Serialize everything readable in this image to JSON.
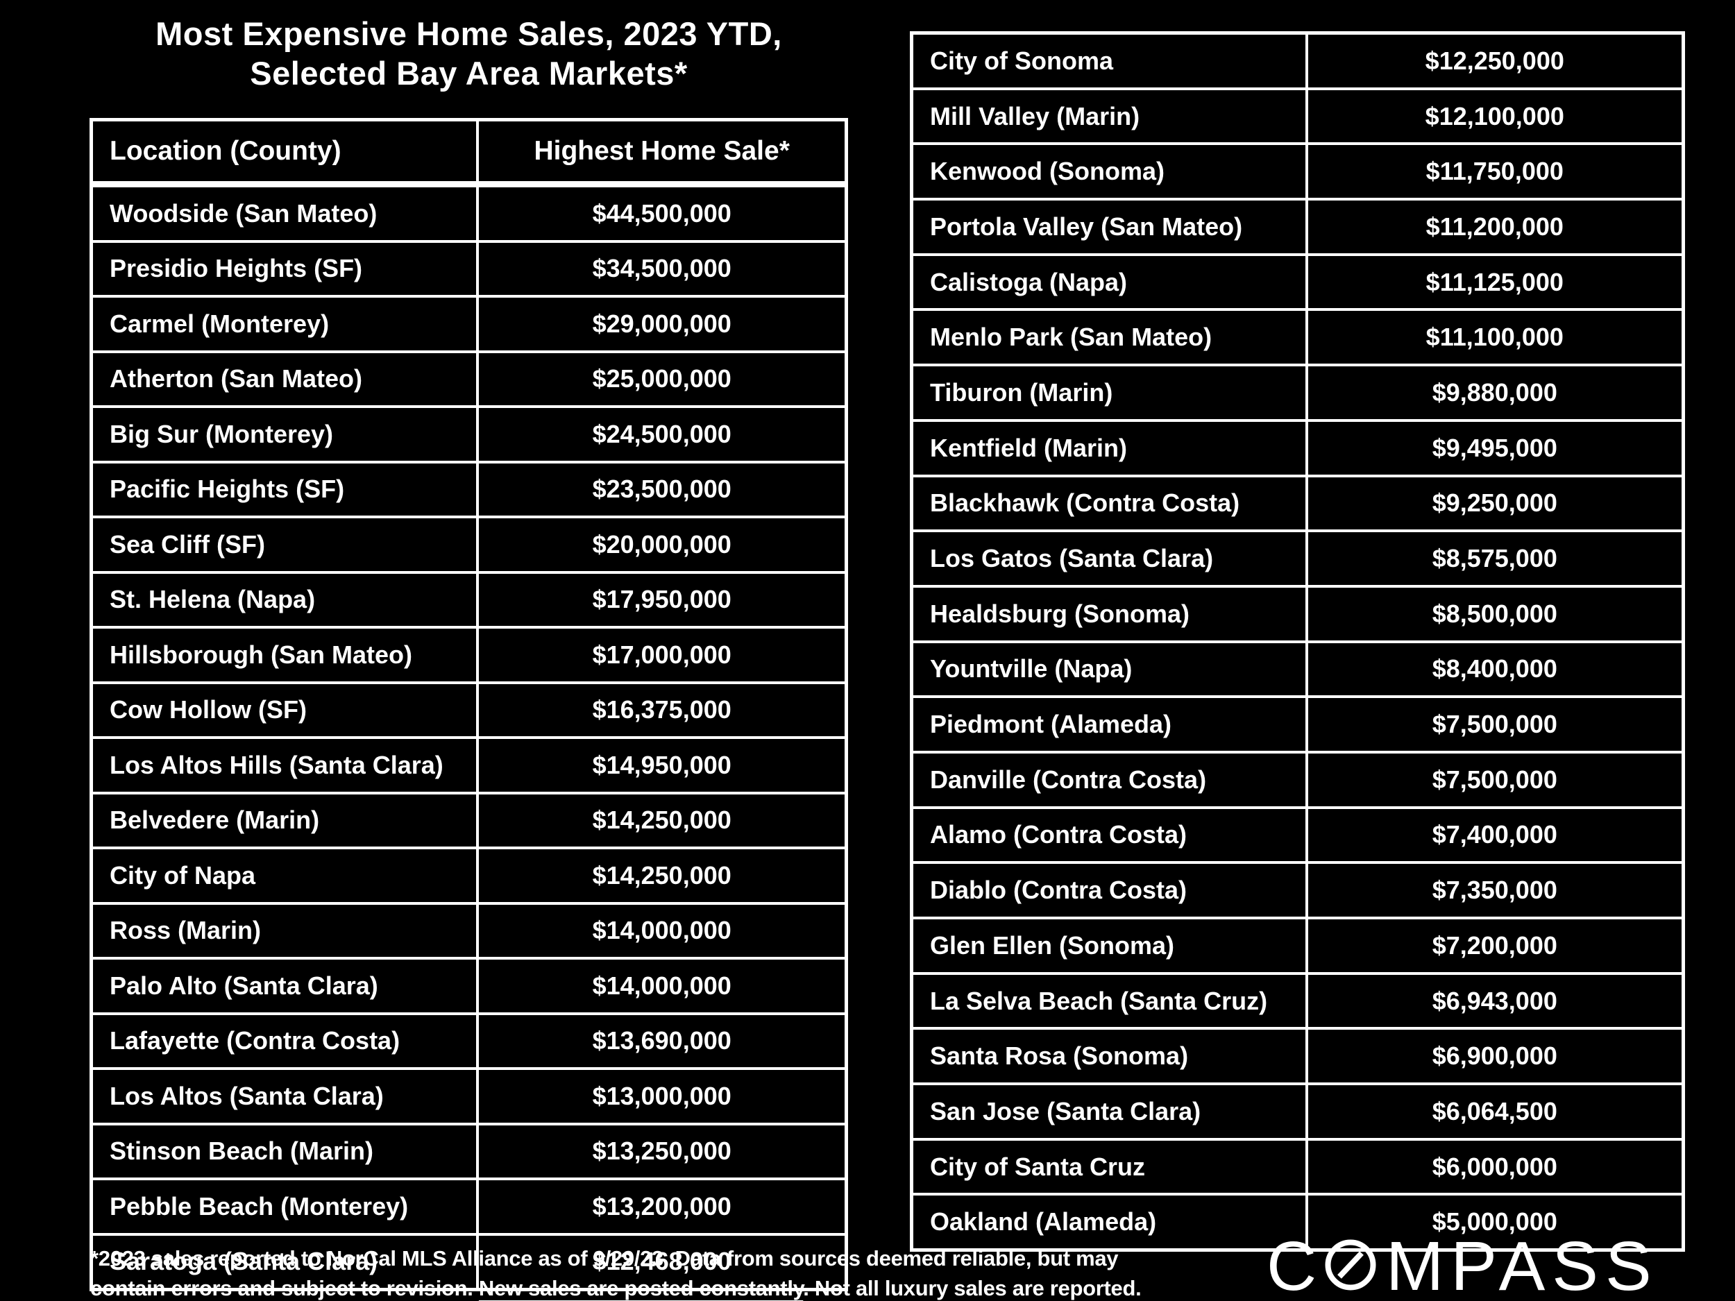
{
  "title": {
    "line1": "Most Expensive Home Sales, 2023 YTD,",
    "line2": "Selected Bay Area Markets*"
  },
  "chart_data": {
    "type": "table",
    "title": "Most Expensive Home Sales, 2023 YTD, Selected Bay Area Markets*",
    "columns": [
      "Location (County)",
      "Highest Home Sale*"
    ],
    "tables": [
      {
        "name": "left",
        "rows": [
          [
            "Woodside (San Mateo)",
            "$44,500,000"
          ],
          [
            "Presidio Heights (SF)",
            "$34,500,000"
          ],
          [
            "Carmel (Monterey)",
            "$29,000,000"
          ],
          [
            "Atherton (San Mateo)",
            "$25,000,000"
          ],
          [
            "Big Sur (Monterey)",
            "$24,500,000"
          ],
          [
            "Pacific Heights (SF)",
            "$23,500,000"
          ],
          [
            "Sea Cliff (SF)",
            "$20,000,000"
          ],
          [
            "St. Helena (Napa)",
            "$17,950,000"
          ],
          [
            "Hillsborough (San Mateo)",
            "$17,000,000"
          ],
          [
            "Cow Hollow (SF)",
            "$16,375,000"
          ],
          [
            "Los Altos Hills (Santa Clara)",
            "$14,950,000"
          ],
          [
            "Belvedere (Marin)",
            "$14,250,000"
          ],
          [
            "City of Napa",
            "$14,250,000"
          ],
          [
            "Ross (Marin)",
            "$14,000,000"
          ],
          [
            "Palo Alto (Santa Clara)",
            "$14,000,000"
          ],
          [
            "Lafayette (Contra Costa)",
            "$13,690,000"
          ],
          [
            "Los Altos (Santa Clara)",
            "$13,000,000"
          ],
          [
            "Stinson Beach (Marin)",
            "$13,250,000"
          ],
          [
            "Pebble Beach (Monterey)",
            "$13,200,000"
          ],
          [
            "Saratoga (Santa Clara)",
            "$12,468,000"
          ]
        ]
      },
      {
        "name": "right",
        "rows": [
          [
            "City of Sonoma",
            "$12,250,000"
          ],
          [
            "Mill Valley (Marin)",
            "$12,100,000"
          ],
          [
            "Kenwood (Sonoma)",
            "$11,750,000"
          ],
          [
            "Portola Valley (San Mateo)",
            "$11,200,000"
          ],
          [
            "Calistoga (Napa)",
            "$11,125,000"
          ],
          [
            "Menlo Park (San Mateo)",
            "$11,100,000"
          ],
          [
            "Tiburon (Marin)",
            "$9,880,000"
          ],
          [
            "Kentfield (Marin)",
            "$9,495,000"
          ],
          [
            "Blackhawk (Contra Costa)",
            "$9,250,000"
          ],
          [
            "Los Gatos (Santa Clara)",
            "$8,575,000"
          ],
          [
            "Healdsburg (Sonoma)",
            "$8,500,000"
          ],
          [
            "Yountville (Napa)",
            "$8,400,000"
          ],
          [
            "Piedmont (Alameda)",
            "$7,500,000"
          ],
          [
            "Danville (Contra Costa)",
            "$7,500,000"
          ],
          [
            "Alamo (Contra Costa)",
            "$7,400,000"
          ],
          [
            "Diablo (Contra Costa)",
            "$7,350,000"
          ],
          [
            "Glen Ellen (Sonoma)",
            "$7,200,000"
          ],
          [
            "La Selva Beach (Santa Cruz)",
            "$6,943,000"
          ],
          [
            "Santa Rosa (Sonoma)",
            "$6,900,000"
          ],
          [
            "San Jose (Santa Clara)",
            "$6,064,500"
          ],
          [
            "City of Santa Cruz",
            "$6,000,000"
          ],
          [
            "Oakland (Alameda)",
            "$5,000,000"
          ]
        ]
      }
    ]
  },
  "footnote": {
    "line1": "*2023 sales reported to NorCal MLS Alliance as of 9/29/23. Data from sources deemed reliable, but may",
    "line2_pre": "contain errors and subject to revision. ",
    "line2_underline": "New sales are posted constantly",
    "line2_post": ". Not all luxury sales are reported."
  },
  "logo": {
    "prefix": "C",
    "suffix": "MPASS",
    "full": "COMPASS"
  },
  "colors": {
    "background": "#000000",
    "text": "#ffffff",
    "border": "#ffffff"
  }
}
